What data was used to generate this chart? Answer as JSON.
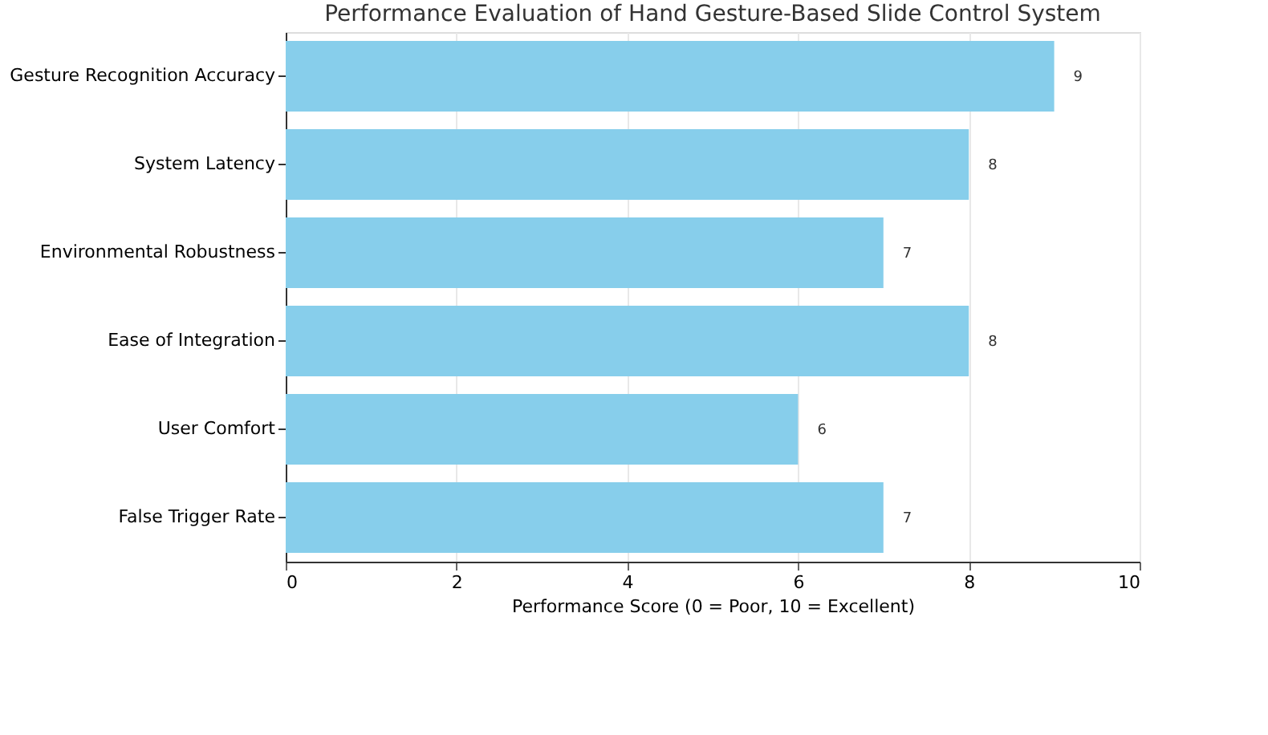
{
  "chart_data": {
    "type": "bar",
    "orientation": "horizontal",
    "title": "Performance Evaluation of Hand Gesture-Based Slide Control System",
    "xlabel": "Performance Score (0 = Poor, 10 = Excellent)",
    "categories": [
      "Gesture Recognition Accuracy",
      "System Latency",
      "Environmental Robustness",
      "Ease of Integration",
      "User Comfort",
      "False Trigger Rate"
    ],
    "values": [
      9,
      8,
      7,
      8,
      6,
      7
    ],
    "color": "#87ceeb",
    "xlim": [
      0,
      10
    ],
    "xticks": [
      0,
      2,
      4,
      6,
      8,
      10
    ],
    "grid": "x",
    "data_labels": true
  }
}
